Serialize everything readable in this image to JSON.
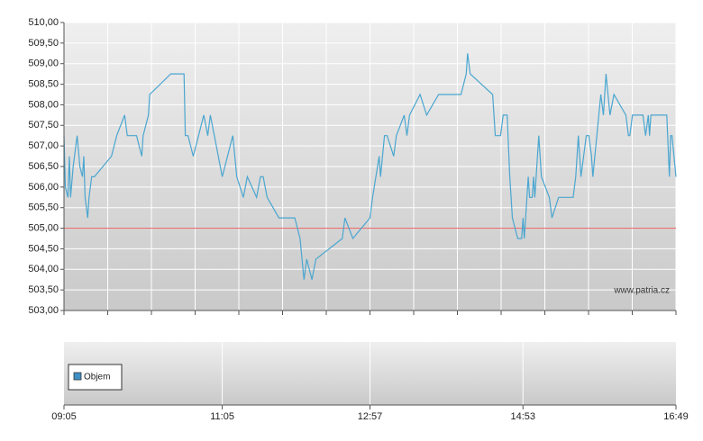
{
  "chart_data": {
    "type": "line",
    "xlim": [
      "09:05",
      "16:49"
    ],
    "xticks": [
      "09:05",
      "11:05",
      "12:57",
      "14:53",
      "16:49"
    ],
    "ylim": [
      503,
      510
    ],
    "yticks": [
      {
        "value": 503,
        "label": "503,00"
      },
      {
        "value": 503.5,
        "label": "503,50"
      },
      {
        "value": 504,
        "label": "504,00"
      },
      {
        "value": 504.5,
        "label": "504,50"
      },
      {
        "value": 505,
        "label": "505,00"
      },
      {
        "value": 505.5,
        "label": "505,50"
      },
      {
        "value": 506,
        "label": "506,00"
      },
      {
        "value": 506.5,
        "label": "506,50"
      },
      {
        "value": 507,
        "label": "507,00"
      },
      {
        "value": 507.5,
        "label": "507,50"
      },
      {
        "value": 508,
        "label": "508,00"
      },
      {
        "value": 508.5,
        "label": "508,50"
      },
      {
        "value": 509,
        "label": "509,00"
      },
      {
        "value": 509.5,
        "label": "509,50"
      },
      {
        "value": 510,
        "label": "510,00"
      }
    ],
    "grid": true,
    "reference_line": 505,
    "reference_color": "#e87070",
    "color": "#4aa6d0",
    "x": [
      "09:05",
      "09:06",
      "09:08",
      "09:09",
      "09:10",
      "09:12",
      "09:15",
      "09:17",
      "09:19",
      "09:20",
      "09:21",
      "09:23",
      "09:24",
      "09:26",
      "09:28",
      "09:41",
      "09:45",
      "09:51",
      "09:53",
      "10:00",
      "10:04",
      "10:05",
      "10:09",
      "10:10",
      "10:26",
      "10:36",
      "10:37",
      "10:39",
      "10:43",
      "10:47",
      "10:51",
      "10:54",
      "10:56",
      "11:05",
      "11:13",
      "11:16",
      "11:21",
      "11:24",
      "11:31",
      "11:34",
      "11:36",
      "11:39",
      "11:48",
      "12:00",
      "12:04",
      "12:07",
      "12:09",
      "12:13",
      "12:16",
      "12:36",
      "12:38",
      "12:44",
      "12:57",
      "12:59",
      "13:04",
      "13:05",
      "13:08",
      "13:10",
      "13:15",
      "13:17",
      "13:23",
      "13:25",
      "13:27",
      "13:35",
      "13:40",
      "13:49",
      "14:06",
      "14:10",
      "14:11",
      "14:13",
      "14:30",
      "14:31",
      "14:32",
      "14:36",
      "14:38",
      "14:41",
      "14:43",
      "14:45",
      "14:49",
      "14:52",
      "14:53",
      "14:54",
      "14:55",
      "14:57",
      "14:58",
      "15:00",
      "15:01",
      "15:02",
      "15:05",
      "15:07",
      "15:13",
      "15:15",
      "15:20",
      "15:31",
      "15:33",
      "15:35",
      "15:37",
      "15:41",
      "15:43",
      "15:45",
      "15:46",
      "15:49",
      "15:52",
      "15:54",
      "15:56",
      "15:59",
      "16:02",
      "16:11",
      "16:13",
      "16:14",
      "16:16",
      "16:24",
      "16:26",
      "16:28",
      "16:29",
      "16:30",
      "16:42",
      "16:44",
      "16:45",
      "16:46",
      "16:49"
    ],
    "values": [
      507.25,
      506,
      505.75,
      506.75,
      505.75,
      506.5,
      507.25,
      506.5,
      506.25,
      506.75,
      505.75,
      505.25,
      505.75,
      506.25,
      506.25,
      506.75,
      507.25,
      507.75,
      507.25,
      507.25,
      506.75,
      507.25,
      507.75,
      508.25,
      508.75,
      508.75,
      507.25,
      507.25,
      506.75,
      507.25,
      507.75,
      507.25,
      507.75,
      506.25,
      507.25,
      506.25,
      505.75,
      506.25,
      505.75,
      506.25,
      506.25,
      505.75,
      505.25,
      505.25,
      504.75,
      503.75,
      504.25,
      503.75,
      504.25,
      504.75,
      505.25,
      504.75,
      505.25,
      505.75,
      506.75,
      506.25,
      507.25,
      507.25,
      506.75,
      507.25,
      507.75,
      507.25,
      507.75,
      508.25,
      507.75,
      508.25,
      508.25,
      508.75,
      509.25,
      508.75,
      508.25,
      507.75,
      507.25,
      507.25,
      507.75,
      507.75,
      506.25,
      505.25,
      504.75,
      504.75,
      505.25,
      504.75,
      505.25,
      506.25,
      505.75,
      505.75,
      506.25,
      505.75,
      507.25,
      506.25,
      505.75,
      505.25,
      505.75,
      505.75,
      506.25,
      507.25,
      506.25,
      507.25,
      507.25,
      506.75,
      506.25,
      507.25,
      508.25,
      507.75,
      508.75,
      507.75,
      508.25,
      507.75,
      507.25,
      507.25,
      507.75,
      507.75,
      507.25,
      507.75,
      507.25,
      507.75,
      507.75,
      506.25,
      507.25,
      507.25,
      506.25
    ],
    "watermark": "www.patria.cz",
    "legend": {
      "name": "Objem",
      "color": "#3f8fc4"
    }
  }
}
